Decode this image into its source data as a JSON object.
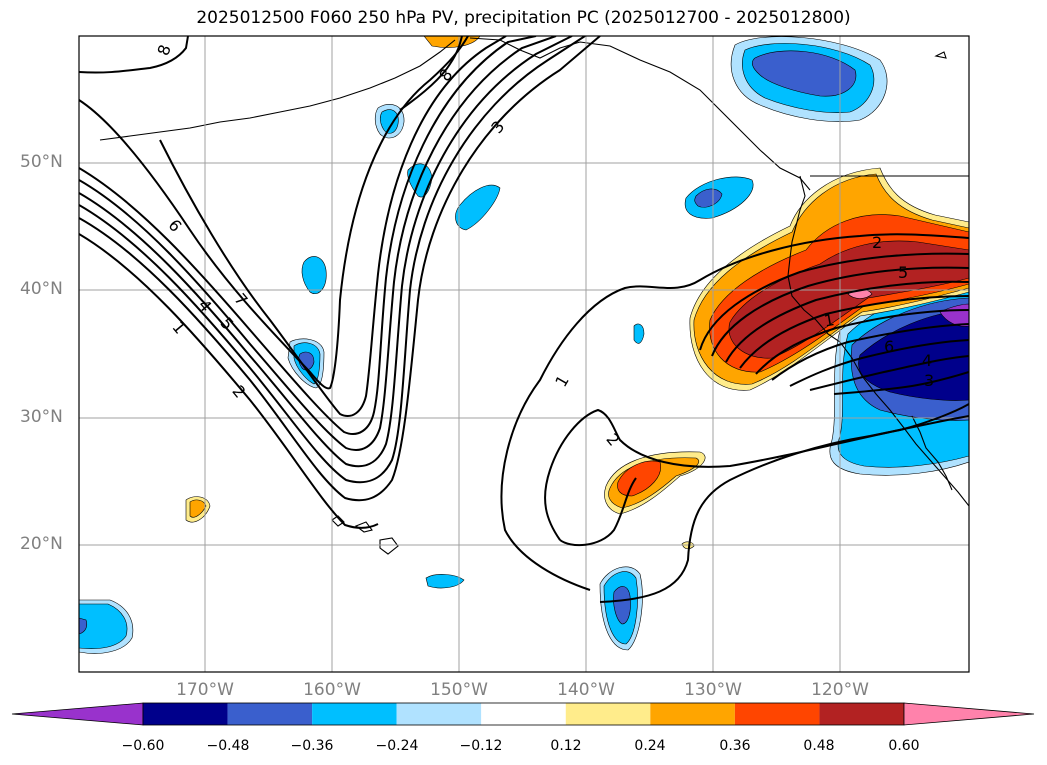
{
  "title": "2025012500 F060 250 hPa PV, precipitation PC (2025012700 - 2025012800)",
  "latitude_labels": [
    "50°N",
    "40°N",
    "30°N",
    "20°N"
  ],
  "longitude_labels": [
    "170°W",
    "160°W",
    "150°W",
    "140°W",
    "130°W",
    "120°W"
  ],
  "colorbar": {
    "tick_labels": [
      "−0.60",
      "−0.48",
      "−0.36",
      "−0.24",
      "−0.12",
      "0.12",
      "0.24",
      "0.36",
      "0.48",
      "0.60"
    ],
    "colors": [
      "#9932CC",
      "#00008B",
      "#3A5FCD",
      "#00BFFF",
      "#B0E2FF",
      "#FFFFFF",
      "#FFEC8B",
      "#FFA500",
      "#FF4500",
      "#B22222",
      "#FF82AB"
    ]
  },
  "contour_labels": [
    "8",
    "8",
    "3",
    "6",
    "7",
    "4",
    "5",
    "1",
    "2",
    "1",
    "2",
    "2",
    "5",
    "1",
    "6",
    "4",
    "3"
  ]
}
